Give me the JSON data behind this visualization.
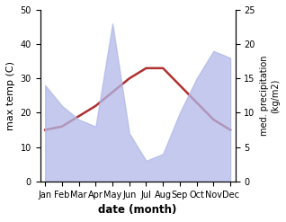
{
  "months": [
    "Jan",
    "Feb",
    "Mar",
    "Apr",
    "May",
    "Jun",
    "Jul",
    "Aug",
    "Sep",
    "Oct",
    "Nov",
    "Dec"
  ],
  "max_temp": [
    15,
    16,
    19,
    22,
    26,
    30,
    33,
    33,
    28,
    23,
    18,
    15
  ],
  "precipitation": [
    14,
    11,
    9,
    8,
    23,
    7,
    3,
    4,
    10,
    15,
    19,
    18
  ],
  "temp_ylim": [
    0,
    50
  ],
  "precip_ylim": [
    0,
    25
  ],
  "temp_color": "#b03030",
  "precip_fill_color": "#b0b8e8",
  "precip_fill_alpha": 0.75,
  "xlabel": "date (month)",
  "ylabel_left": "max temp (C)",
  "ylabel_right": "med. precipitation\n(kg/m2)",
  "bg_color": "#ffffff",
  "temp_linewidth": 1.8,
  "left_yticks": [
    0,
    10,
    20,
    30,
    40,
    50
  ],
  "right_yticks": [
    0,
    5,
    10,
    15,
    20,
    25
  ]
}
